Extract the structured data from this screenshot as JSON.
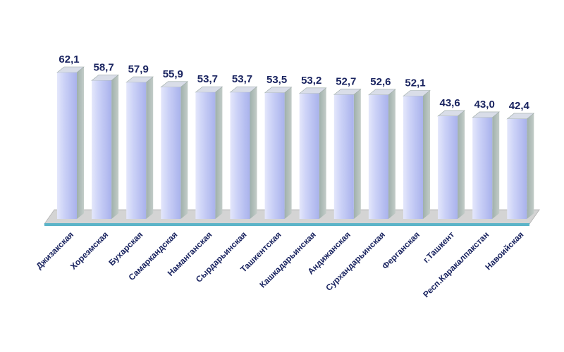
{
  "chart_data": {
    "type": "bar",
    "title": "",
    "xlabel": "",
    "ylabel": "",
    "categories": [
      "Джизакская",
      "Хорезмская",
      "Бухарская",
      "Самаркандская",
      "Наманганская",
      "Сырдарьинская",
      "Ташкентская",
      "Кашкадарьинская",
      "Андижанская",
      "Сурхандарьинская",
      "Ферганская",
      "г.Ташкент",
      "Респ.Каракалпакстан",
      "Навоийская"
    ],
    "values": [
      62.1,
      58.7,
      57.9,
      55.9,
      53.7,
      53.7,
      53.5,
      53.2,
      52.7,
      52.6,
      52.1,
      43.6,
      43.0,
      42.4
    ],
    "value_labels": [
      "62,1",
      "58,7",
      "57,9",
      "55,9",
      "53,7",
      "53,7",
      "53,5",
      "53,2",
      "52,7",
      "52,6",
      "52,1",
      "43,6",
      "43,0",
      "42,4"
    ],
    "ylim": [
      0,
      62.1
    ],
    "grid": false,
    "legend": "none",
    "colors": {
      "bar_front": "#c6ccf6",
      "bar_side": "#a8b4b0",
      "bar_top": "#d9dde8",
      "floor": "#d4d4d4",
      "baseline": "#5bb4c8",
      "label": "#1a2460"
    }
  }
}
